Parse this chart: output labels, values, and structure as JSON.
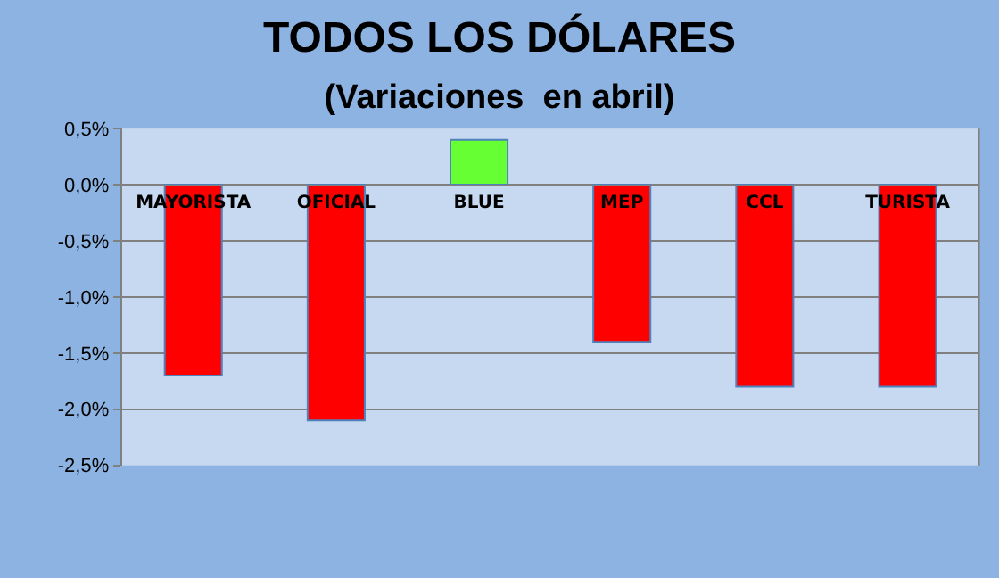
{
  "chart_data": {
    "type": "bar",
    "title": "TODOS LOS DÓLARES",
    "subtitle": "(Variaciones  en abril)",
    "categories": [
      "MAYORISTA",
      "OFICIAL",
      "BLUE",
      "MEP",
      "CCL",
      "TURISTA"
    ],
    "values": [
      -1.7,
      -2.1,
      0.4,
      -1.4,
      -1.8,
      -1.8
    ],
    "colors": [
      "#ff0000",
      "#ff0000",
      "#66ff33",
      "#ff0000",
      "#ff0000",
      "#ff0000"
    ],
    "ylim": [
      -2.5,
      0.5
    ],
    "yticks": [
      {
        "value": -2.5,
        "label": "-2,5%"
      },
      {
        "value": -2.0,
        "label": "-2,0%"
      },
      {
        "value": -1.5,
        "label": "-1,5%"
      },
      {
        "value": -1.0,
        "label": "-1,0%"
      },
      {
        "value": -0.5,
        "label": "-0,5%"
      },
      {
        "value": 0.0,
        "label": "0,0%"
      },
      {
        "value": 0.5,
        "label": "0,5%"
      }
    ],
    "grid": "y"
  }
}
